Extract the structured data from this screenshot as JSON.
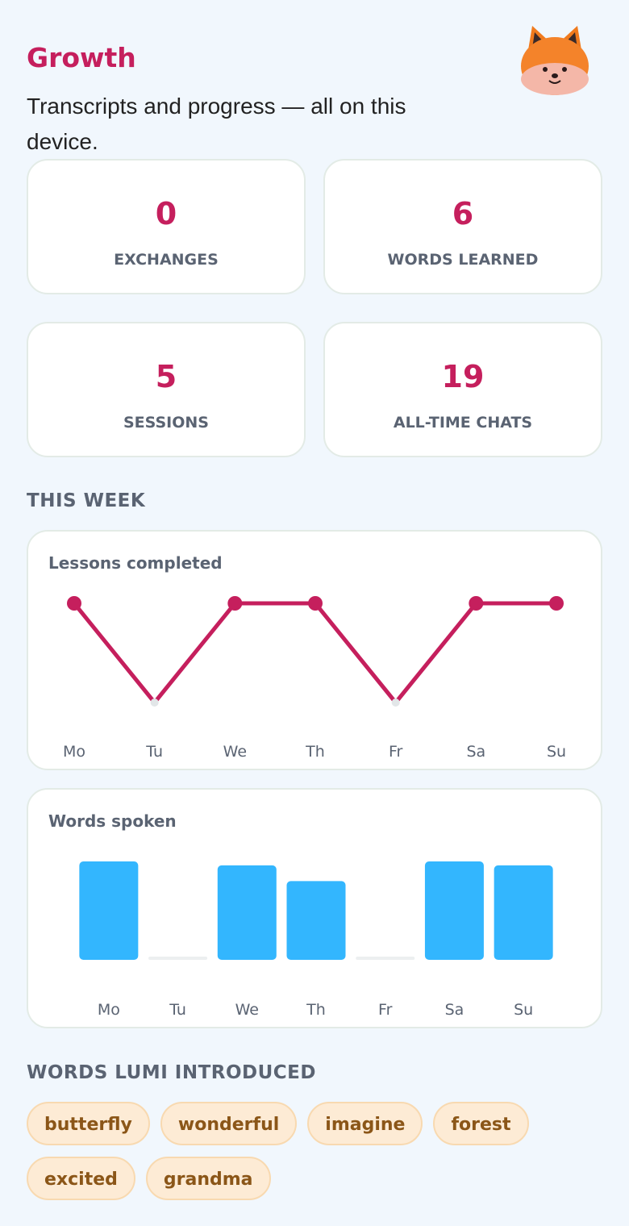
{
  "header": {
    "title": "Growth",
    "subtitle": "Transcripts and progress — all on this device."
  },
  "stats": [
    {
      "value": 0,
      "label": "EXCHANGES"
    },
    {
      "value": 6,
      "label": "WORDS LEARNED"
    },
    {
      "value": 5,
      "label": "SESSIONS"
    },
    {
      "value": 19,
      "label": "ALL-TIME CHATS"
    }
  ],
  "week_heading": "THIS WEEK",
  "chart_data": [
    {
      "type": "line",
      "title": "Lessons completed",
      "categories": [
        "Mo",
        "Tu",
        "We",
        "Th",
        "Fr",
        "Sa",
        "Su"
      ],
      "values": [
        1,
        0,
        1,
        1,
        0,
        1,
        1
      ],
      "color": "#c51f5d",
      "ylim": [
        0,
        1
      ]
    },
    {
      "type": "bar",
      "title": "Words spoken",
      "categories": [
        "Mo",
        "Tu",
        "We",
        "Th",
        "Fr",
        "Sa",
        "Su"
      ],
      "values": [
        50,
        0,
        48,
        40,
        0,
        50,
        48
      ],
      "color": "#33b6fe",
      "ylim": [
        0,
        50
      ]
    }
  ],
  "words": {
    "heading": "WORDS LUMI INTRODUCED",
    "items": [
      "butterfly",
      "wonderful",
      "imagine",
      "forest",
      "excited",
      "grandma"
    ]
  }
}
